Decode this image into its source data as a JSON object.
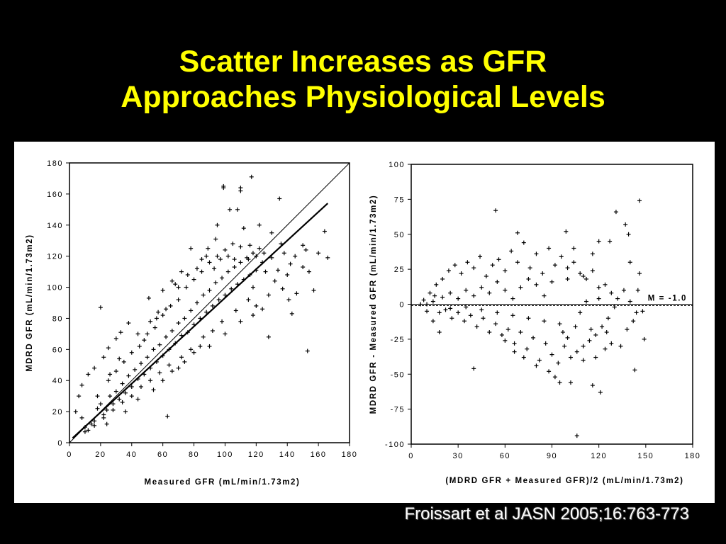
{
  "slide": {
    "title_line1": "Scatter Increases as GFR",
    "title_line2": "Approaches Physiological Levels",
    "citation": "Froissart et al JASN 2005;16:763-773"
  },
  "colors": {
    "background": "#000000",
    "title": "#ffff00",
    "citation": "#ffffff",
    "marks": "#000000"
  },
  "chart_data": [
    {
      "type": "scatter",
      "title": "",
      "xlabel": "Measured GFR (mL/min/1.73m2)",
      "ylabel": "MDRD GFR (mL/min/1.73m2)",
      "xlim": [
        0,
        180
      ],
      "ylim": [
        0,
        180
      ],
      "xticks": [
        0,
        20,
        40,
        60,
        80,
        100,
        120,
        140,
        160,
        180
      ],
      "yticks": [
        0,
        20,
        40,
        60,
        80,
        100,
        120,
        140,
        160,
        180
      ],
      "grid": false,
      "marker": "+",
      "lines": [
        {
          "kind": "identity",
          "from": [
            0,
            0
          ],
          "to": [
            180,
            180
          ]
        },
        {
          "kind": "regression",
          "from": [
            2,
            3
          ],
          "to": [
            166,
            154
          ]
        }
      ],
      "points": [
        [
          99,
          165
        ],
        [
          99,
          164
        ],
        [
          117,
          171
        ],
        [
          110,
          164
        ],
        [
          110,
          162
        ],
        [
          135,
          157
        ],
        [
          122,
          125
        ],
        [
          152,
          124
        ],
        [
          164,
          136
        ],
        [
          166,
          119
        ],
        [
          150,
          127
        ],
        [
          157,
          98
        ],
        [
          146,
          96
        ],
        [
          153,
          59
        ],
        [
          63,
          17
        ],
        [
          20,
          87
        ],
        [
          51,
          93
        ],
        [
          60,
          98
        ],
        [
          68,
          102
        ],
        [
          94,
          131
        ],
        [
          103,
          150
        ],
        [
          122,
          140
        ],
        [
          130,
          135
        ],
        [
          140,
          108
        ],
        [
          143,
          83
        ],
        [
          128,
          68
        ],
        [
          118,
          100
        ],
        [
          145,
          120
        ],
        [
          108,
          150
        ],
        [
          112,
          138
        ],
        [
          116,
          127
        ],
        [
          89,
          125
        ],
        [
          85,
          118
        ],
        [
          95,
          140
        ],
        [
          78,
          125
        ],
        [
          72,
          110
        ],
        [
          66,
          104
        ],
        [
          57,
          84
        ],
        [
          52,
          78
        ],
        [
          38,
          77
        ],
        [
          33,
          71
        ],
        [
          30,
          67
        ],
        [
          25,
          61
        ],
        [
          22,
          55
        ],
        [
          16,
          48
        ],
        [
          12,
          44
        ],
        [
          8,
          37
        ],
        [
          6,
          30
        ],
        [
          4,
          20
        ],
        [
          8,
          16
        ],
        [
          10,
          10
        ],
        [
          12,
          8
        ],
        [
          14,
          12
        ],
        [
          16,
          14
        ],
        [
          18,
          22
        ],
        [
          20,
          25
        ],
        [
          22,
          18
        ],
        [
          24,
          21
        ],
        [
          26,
          30
        ],
        [
          28,
          25
        ],
        [
          30,
          33
        ],
        [
          32,
          28
        ],
        [
          34,
          38
        ],
        [
          36,
          32
        ],
        [
          38,
          43
        ],
        [
          40,
          36
        ],
        [
          42,
          47
        ],
        [
          44,
          41
        ],
        [
          46,
          51
        ],
        [
          48,
          44
        ],
        [
          50,
          55
        ],
        [
          52,
          48
        ],
        [
          54,
          60
        ],
        [
          56,
          52
        ],
        [
          58,
          63
        ],
        [
          60,
          56
        ],
        [
          62,
          68
        ],
        [
          64,
          60
        ],
        [
          66,
          72
        ],
        [
          68,
          64
        ],
        [
          70,
          77
        ],
        [
          72,
          69
        ],
        [
          74,
          80
        ],
        [
          76,
          71
        ],
        [
          78,
          85
        ],
        [
          80,
          76
        ],
        [
          82,
          90
        ],
        [
          84,
          80
        ],
        [
          86,
          95
        ],
        [
          88,
          84
        ],
        [
          90,
          98
        ],
        [
          92,
          88
        ],
        [
          94,
          103
        ],
        [
          96,
          92
        ],
        [
          98,
          106
        ],
        [
          100,
          95
        ],
        [
          102,
          110
        ],
        [
          104,
          99
        ],
        [
          106,
          113
        ],
        [
          108,
          102
        ],
        [
          110,
          116
        ],
        [
          112,
          105
        ],
        [
          114,
          119
        ],
        [
          116,
          108
        ],
        [
          118,
          122
        ],
        [
          120,
          111
        ],
        [
          124,
          116
        ],
        [
          126,
          110
        ],
        [
          130,
          119
        ],
        [
          134,
          111
        ],
        [
          138,
          122
        ],
        [
          142,
          115
        ],
        [
          136,
          128
        ],
        [
          128,
          95
        ],
        [
          120,
          88
        ],
        [
          115,
          92
        ],
        [
          107,
          85
        ],
        [
          98,
          78
        ],
        [
          92,
          72
        ],
        [
          86,
          68
        ],
        [
          78,
          60
        ],
        [
          72,
          55
        ],
        [
          64,
          50
        ],
        [
          58,
          45
        ],
        [
          52,
          40
        ],
        [
          46,
          36
        ],
        [
          40,
          30
        ],
        [
          34,
          26
        ],
        [
          28,
          21
        ],
        [
          22,
          16
        ],
        [
          16,
          11
        ],
        [
          10,
          7
        ],
        [
          25,
          40
        ],
        [
          30,
          46
        ],
        [
          35,
          52
        ],
        [
          40,
          58
        ],
        [
          45,
          62
        ],
        [
          50,
          70
        ],
        [
          55,
          74
        ],
        [
          60,
          82
        ],
        [
          65,
          88
        ],
        [
          70,
          92
        ],
        [
          75,
          100
        ],
        [
          80,
          105
        ],
        [
          85,
          110
        ],
        [
          90,
          116
        ],
        [
          95,
          120
        ],
        [
          100,
          124
        ],
        [
          105,
          128
        ],
        [
          110,
          126
        ],
        [
          115,
          118
        ],
        [
          120,
          120
        ],
        [
          125,
          122
        ],
        [
          132,
          104
        ],
        [
          137,
          99
        ],
        [
          141,
          92
        ],
        [
          150,
          113
        ],
        [
          154,
          110
        ],
        [
          160,
          122
        ],
        [
          18,
          30
        ],
        [
          26,
          44
        ],
        [
          32,
          54
        ],
        [
          44,
          70
        ],
        [
          48,
          66
        ],
        [
          56,
          80
        ],
        [
          62,
          86
        ],
        [
          70,
          100
        ],
        [
          76,
          108
        ],
        [
          82,
          112
        ],
        [
          88,
          120
        ],
        [
          93,
          112
        ],
        [
          97,
          118
        ],
        [
          102,
          120
        ],
        [
          106,
          118
        ],
        [
          60,
          40
        ],
        [
          70,
          48
        ],
        [
          80,
          58
        ],
        [
          90,
          62
        ],
        [
          100,
          70
        ],
        [
          110,
          78
        ],
        [
          118,
          82
        ],
        [
          124,
          86
        ],
        [
          84,
          62
        ],
        [
          74,
          52
        ],
        [
          66,
          46
        ],
        [
          54,
          34
        ],
        [
          44,
          28
        ],
        [
          36,
          20
        ],
        [
          24,
          12
        ]
      ]
    },
    {
      "type": "scatter",
      "title": "",
      "xlabel": "(MDRD GFR + Measured GFR)/2 (mL/min/1.73m2)",
      "ylabel": "MDRD GFR - Measured GFR (mL/min/1.73m2)",
      "xlim": [
        0,
        180
      ],
      "ylim": [
        -100,
        100
      ],
      "xticks": [
        0,
        30,
        60,
        90,
        120,
        150,
        180
      ],
      "yticks": [
        -100,
        -75,
        -50,
        -25,
        0,
        25,
        50,
        75,
        100
      ],
      "grid": false,
      "marker": "+",
      "annotation": "M = -1.0",
      "lines": [
        {
          "kind": "zero",
          "y": 0
        },
        {
          "kind": "mean",
          "y": -1.0,
          "style": "dashed"
        }
      ],
      "points": [
        [
          54,
          67
        ],
        [
          146,
          74
        ],
        [
          131,
          66
        ],
        [
          137,
          57
        ],
        [
          68,
          51
        ],
        [
          99,
          52
        ],
        [
          120,
          45
        ],
        [
          127,
          45
        ],
        [
          139,
          50
        ],
        [
          104,
          40
        ],
        [
          116,
          36
        ],
        [
          140,
          30
        ],
        [
          145,
          10
        ],
        [
          148,
          -5
        ],
        [
          149,
          -25
        ],
        [
          143,
          -47
        ],
        [
          121,
          -63
        ],
        [
          106,
          -94
        ],
        [
          102,
          -56
        ],
        [
          116,
          -58
        ],
        [
          40,
          -46
        ],
        [
          18,
          -20
        ],
        [
          14,
          -12
        ],
        [
          10,
          -5
        ],
        [
          8,
          3
        ],
        [
          12,
          8
        ],
        [
          16,
          14
        ],
        [
          20,
          18
        ],
        [
          24,
          24
        ],
        [
          28,
          28
        ],
        [
          32,
          22
        ],
        [
          36,
          30
        ],
        [
          40,
          26
        ],
        [
          44,
          34
        ],
        [
          48,
          20
        ],
        [
          52,
          28
        ],
        [
          56,
          32
        ],
        [
          60,
          24
        ],
        [
          64,
          38
        ],
        [
          68,
          30
        ],
        [
          72,
          44
        ],
        [
          76,
          26
        ],
        [
          80,
          36
        ],
        [
          84,
          22
        ],
        [
          88,
          40
        ],
        [
          92,
          28
        ],
        [
          96,
          34
        ],
        [
          100,
          26
        ],
        [
          104,
          30
        ],
        [
          108,
          22
        ],
        [
          112,
          18
        ],
        [
          116,
          24
        ],
        [
          120,
          12
        ],
        [
          124,
          14
        ],
        [
          128,
          8
        ],
        [
          132,
          4
        ],
        [
          136,
          10
        ],
        [
          140,
          2
        ],
        [
          144,
          -6
        ],
        [
          126,
          -10
        ],
        [
          122,
          -16
        ],
        [
          118,
          -22
        ],
        [
          114,
          -26
        ],
        [
          110,
          -30
        ],
        [
          106,
          -34
        ],
        [
          102,
          -38
        ],
        [
          98,
          -30
        ],
        [
          94,
          -42
        ],
        [
          90,
          -36
        ],
        [
          86,
          -28
        ],
        [
          82,
          -40
        ],
        [
          78,
          -24
        ],
        [
          74,
          -32
        ],
        [
          70,
          -20
        ],
        [
          66,
          -28
        ],
        [
          62,
          -18
        ],
        [
          58,
          -22
        ],
        [
          54,
          -14
        ],
        [
          50,
          -20
        ],
        [
          46,
          -10
        ],
        [
          42,
          -16
        ],
        [
          38,
          -8
        ],
        [
          34,
          -12
        ],
        [
          30,
          -6
        ],
        [
          26,
          -10
        ],
        [
          22,
          -4
        ],
        [
          18,
          -6
        ],
        [
          14,
          2
        ],
        [
          10,
          0
        ],
        [
          6,
          0
        ],
        [
          20,
          5
        ],
        [
          25,
          -3
        ],
        [
          30,
          4
        ],
        [
          35,
          -2
        ],
        [
          40,
          6
        ],
        [
          45,
          -4
        ],
        [
          50,
          8
        ],
        [
          55,
          -6
        ],
        [
          60,
          10
        ],
        [
          65,
          -8
        ],
        [
          70,
          12
        ],
        [
          75,
          -10
        ],
        [
          80,
          14
        ],
        [
          85,
          -12
        ],
        [
          90,
          16
        ],
        [
          95,
          -14
        ],
        [
          100,
          18
        ],
        [
          105,
          -16
        ],
        [
          110,
          20
        ],
        [
          115,
          -18
        ],
        [
          120,
          4
        ],
        [
          125,
          -20
        ],
        [
          130,
          -2
        ],
        [
          88,
          -48
        ],
        [
          92,
          -52
        ],
        [
          97,
          -20
        ],
        [
          85,
          6
        ],
        [
          75,
          18
        ],
        [
          65,
          4
        ],
        [
          55,
          16
        ],
        [
          45,
          12
        ],
        [
          35,
          10
        ],
        [
          25,
          8
        ],
        [
          15,
          6
        ],
        [
          110,
          -40
        ],
        [
          118,
          -38
        ],
        [
          124,
          -32
        ],
        [
          95,
          -56
        ],
        [
          80,
          -44
        ],
        [
          72,
          -38
        ],
        [
          66,
          -34
        ],
        [
          60,
          -26
        ],
        [
          100,
          -24
        ],
        [
          108,
          -6
        ],
        [
          112,
          2
        ],
        [
          128,
          -28
        ],
        [
          134,
          -30
        ],
        [
          138,
          -18
        ],
        [
          142,
          -12
        ],
        [
          146,
          22
        ]
      ]
    }
  ]
}
